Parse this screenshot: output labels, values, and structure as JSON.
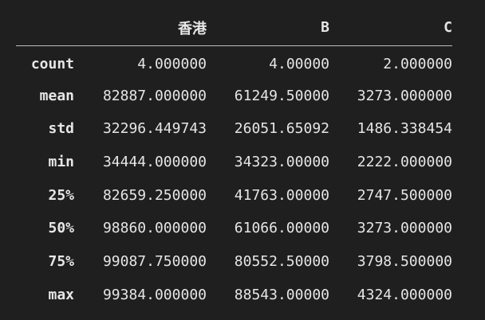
{
  "table": {
    "index_header": "",
    "columns": [
      "香港",
      "B",
      "C"
    ],
    "rows": [
      {
        "label": "count",
        "values": [
          "4.000000",
          "4.00000",
          "2.000000"
        ]
      },
      {
        "label": "mean",
        "values": [
          "82887.000000",
          "61249.50000",
          "3273.000000"
        ]
      },
      {
        "label": "std",
        "values": [
          "32296.449743",
          "26051.65092",
          "1486.338454"
        ]
      },
      {
        "label": "min",
        "values": [
          "34444.000000",
          "34323.00000",
          "2222.000000"
        ]
      },
      {
        "label": "25%",
        "values": [
          "82659.250000",
          "41763.00000",
          "2747.500000"
        ]
      },
      {
        "label": "50%",
        "values": [
          "98860.000000",
          "61066.00000",
          "3273.000000"
        ]
      },
      {
        "label": "75%",
        "values": [
          "99087.750000",
          "80552.50000",
          "3798.500000"
        ]
      },
      {
        "label": "max",
        "values": [
          "99384.000000",
          "88543.00000",
          "4324.000000"
        ]
      }
    ]
  },
  "colors": {
    "background": "#1f1f1f",
    "text": "#e6e6e6",
    "rule": "#bdbdbd"
  }
}
